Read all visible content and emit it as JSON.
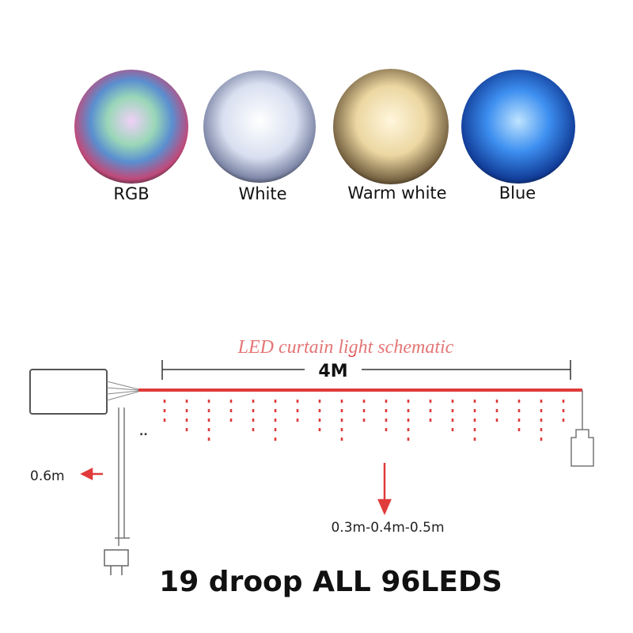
{
  "colors": [
    {
      "label": "RGB"
    },
    {
      "label": "White"
    },
    {
      "label": "Warm white"
    },
    {
      "label": "Blue"
    }
  ],
  "schematic": {
    "title": "LED curtain light schematic",
    "width_label": "4M",
    "cable_label": "0.6m",
    "drop_label": "0.3m-0.4m-0.5m"
  },
  "caption": "19 droop ALL 96LEDS"
}
